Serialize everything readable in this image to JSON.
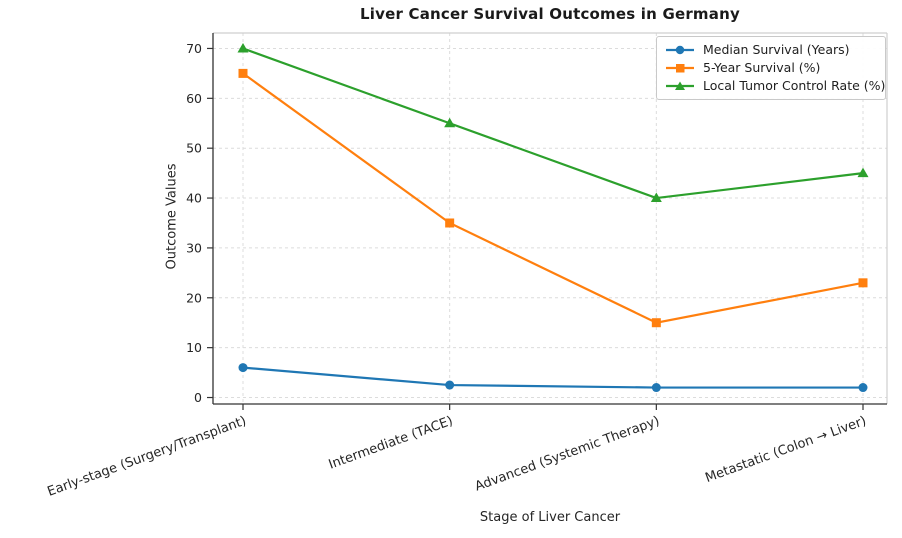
{
  "chart_data": {
    "type": "line",
    "title": "Liver Cancer Survival Outcomes in Germany",
    "xlabel": "Stage of Liver Cancer",
    "ylabel": "Outcome Values",
    "categories": [
      "Early-stage (Surgery/Transplant)",
      "Intermediate (TACE)",
      "Advanced (Systemic Therapy)",
      "Metastatic (Colon → Liver)"
    ],
    "series": [
      {
        "name": "Median Survival (Years)",
        "values": [
          6,
          2.5,
          2,
          2
        ],
        "color": "#1f77b4",
        "marker": "circle"
      },
      {
        "name": "5-Year Survival (%)",
        "values": [
          65,
          35,
          15,
          23
        ],
        "color": "#ff7f0e",
        "marker": "square"
      },
      {
        "name": "Local Tumor Control Rate (%)",
        "values": [
          70,
          55,
          40,
          45
        ],
        "color": "#2ca02c",
        "marker": "triangle"
      }
    ],
    "yticks": [
      0,
      10,
      20,
      30,
      40,
      50,
      60,
      70
    ],
    "ylim": [
      -1.3,
      73.1
    ],
    "grid": true,
    "grid_style": "dashed",
    "legend_position": "top-right",
    "x_tick_rotation_deg": 20
  },
  "colors": {
    "grid": "#dcdcdc",
    "spine_dark": "#333333",
    "spine_light": "#cfcfcf",
    "tick_text": "#262626",
    "background": "#ffffff",
    "legend_border": "#c9c9c9"
  }
}
